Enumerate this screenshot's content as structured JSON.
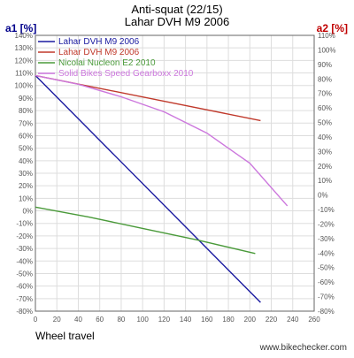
{
  "chart_data": {
    "type": "line",
    "title": "Anti-squat (22/15)",
    "subtitle": "Lahar DVH M9 2006",
    "ylabel_left": "a1 [%]",
    "ylabel_right": "a2 [%]",
    "xlabel": "Wheel travel",
    "watermark": "www.bikechecker.com",
    "xlim": [
      0,
      260
    ],
    "x_ticks": [
      0,
      20,
      40,
      60,
      80,
      100,
      120,
      140,
      160,
      180,
      200,
      220,
      240,
      260
    ],
    "ylim_left": [
      -80,
      140
    ],
    "y_ticks_left": [
      -80,
      -70,
      -60,
      -50,
      -40,
      -30,
      -20,
      -10,
      0,
      10,
      20,
      30,
      40,
      50,
      60,
      70,
      80,
      90,
      100,
      110,
      120,
      130,
      140
    ],
    "ylim_right": [
      -80,
      110
    ],
    "y_ticks_right": [
      -80,
      -70,
      -60,
      -50,
      -40,
      -30,
      -20,
      -10,
      0,
      10,
      20,
      30,
      40,
      50,
      60,
      70,
      80,
      90,
      100,
      110
    ],
    "grid": true,
    "legend_position": "top-left",
    "colors": {
      "axis_left": "#00008b",
      "axis_right": "#c00000",
      "grid": "#dddddd"
    },
    "series": [
      {
        "name": "Lahar DVH M9 2006",
        "axis": "left",
        "color": "#1a1aa0",
        "x": [
          0,
          210
        ],
        "y": [
          108,
          -73
        ]
      },
      {
        "name": "Lahar DVH M9 2006",
        "axis": "left",
        "color": "#c0392b",
        "x": [
          0,
          210
        ],
        "y": [
          108,
          72
        ]
      },
      {
        "name": "Nicolai Nucleon E2 2010",
        "axis": "left",
        "color": "#4a9a3a",
        "x": [
          0,
          50,
          100,
          150,
          205
        ],
        "y": [
          3,
          -5,
          -14,
          -23,
          -34
        ]
      },
      {
        "name": "Solid Bikes Speed Gearboxx 2010",
        "axis": "left",
        "color": "#cc77dd",
        "x": [
          0,
          40,
          80,
          120,
          160,
          200,
          235
        ],
        "y": [
          108,
          101,
          91,
          79,
          62,
          38,
          4
        ]
      }
    ]
  }
}
